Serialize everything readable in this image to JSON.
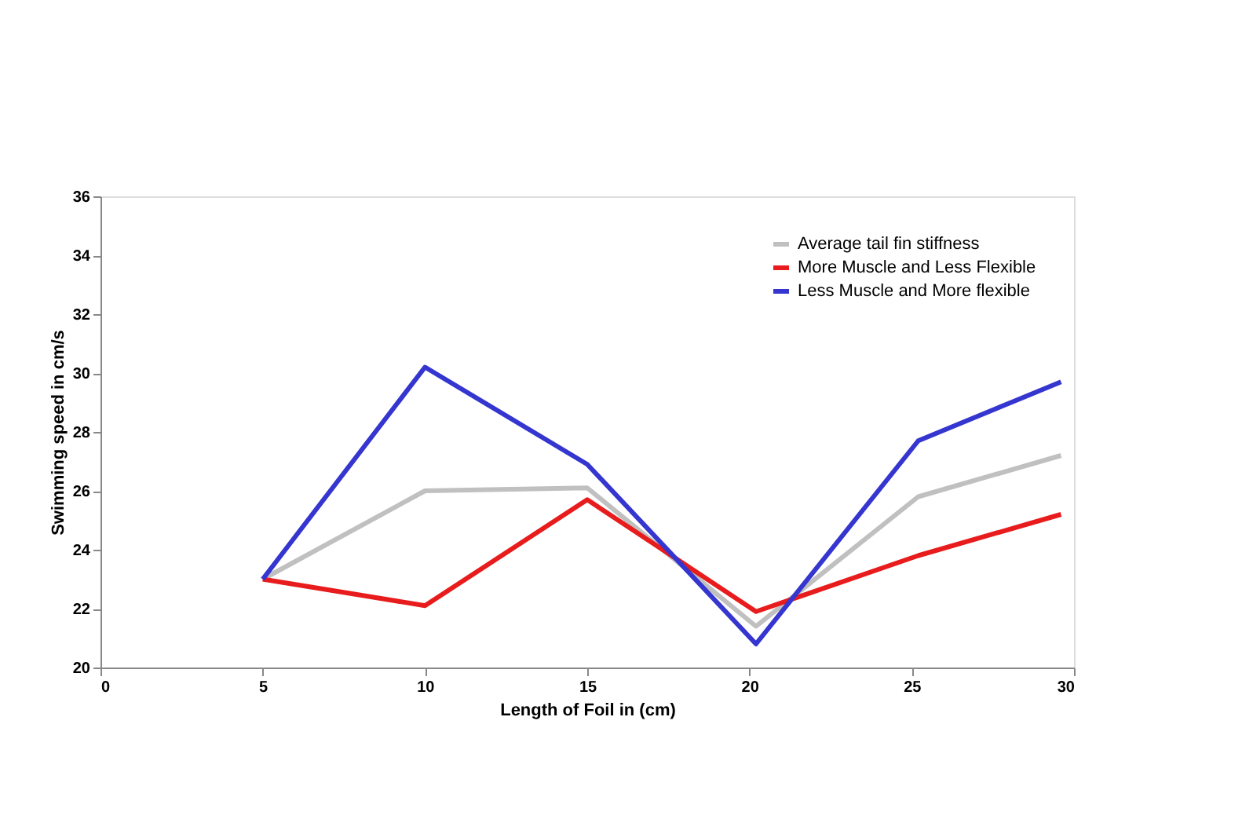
{
  "chart_data": {
    "type": "line",
    "xlabel": "Length of Foil in (cm)",
    "ylabel": "Swimming speed in cm/s",
    "xlim": [
      0,
      30
    ],
    "xticks": [
      0,
      5,
      10,
      15,
      20,
      25,
      30
    ],
    "ylim": [
      20,
      36
    ],
    "yticks": [
      20,
      22,
      24,
      26,
      28,
      30,
      32,
      34,
      36
    ],
    "grid": false,
    "legend": "top right",
    "marker": "none",
    "line_style": "solid",
    "series": [
      {
        "name": "Average tail fin stiffness",
        "color": "#c0c0c0",
        "x": [
          5,
          10,
          15,
          20.2,
          25.2,
          29.6
        ],
        "values": [
          23,
          26,
          26.1,
          21.4,
          25.8,
          27.2
        ]
      },
      {
        "name": "More Muscle and Less Flexible",
        "color": "#e81c1c",
        "x": [
          5,
          10,
          15,
          20.2,
          25.2,
          29.6
        ],
        "values": [
          23,
          22.1,
          25.7,
          21.9,
          23.8,
          25.2
        ]
      },
      {
        "name": "Less Muscle and More flexible",
        "color": "#3535d0",
        "x": [
          5,
          10,
          15,
          20.2,
          25.2,
          29.6
        ],
        "values": [
          23,
          30.2,
          26.9,
          20.8,
          27.7,
          29.7
        ]
      }
    ]
  }
}
